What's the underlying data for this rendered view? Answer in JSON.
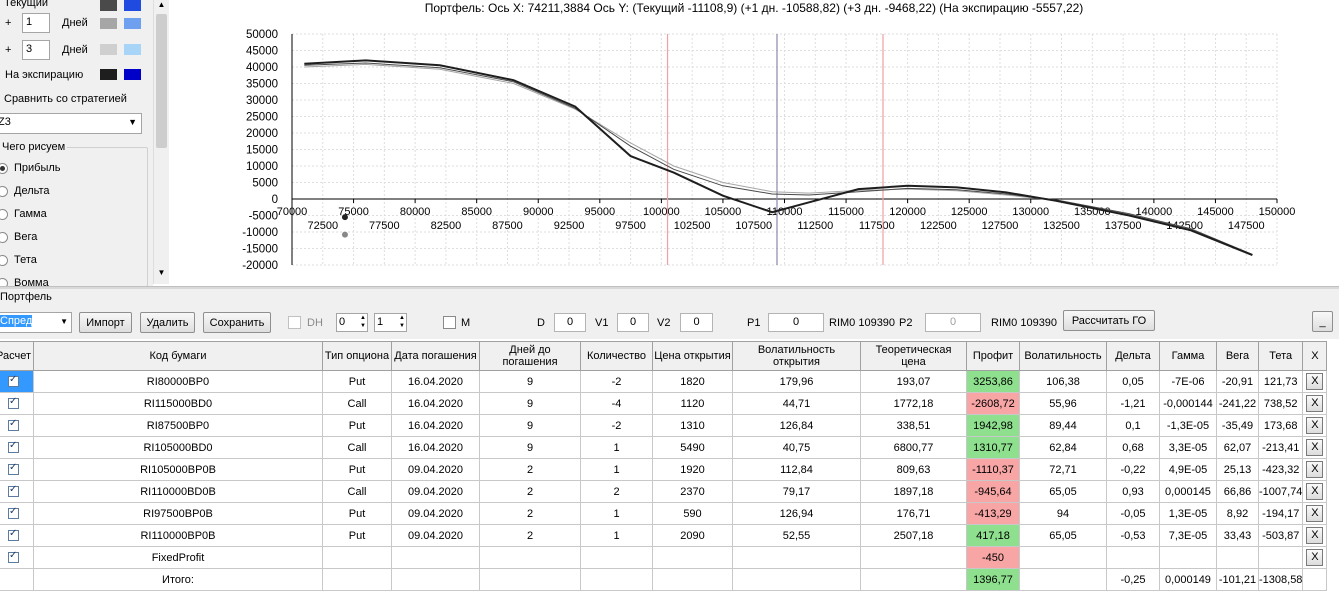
{
  "legend": {
    "current_label": "Текущий",
    "plus_sign": "+",
    "day1_value": "1",
    "day2_value": "3",
    "days_label": "Дней",
    "expiry_label": "На экспирацию",
    "compare_label": "Сравнить со стратегией",
    "compare_select": "Z3",
    "draw_group": "Чего рисуем",
    "draw_options": [
      "Прибыль",
      "Дельта",
      "Гамма",
      "Вега",
      "Тета",
      "Вомма"
    ],
    "colors": {
      "current_a": "#4a4a4a",
      "current_b": "#1f4be0",
      "p1_a": "#a6a6a6",
      "p1_b": "#6fa0f0",
      "p3_a": "#cfcfcf",
      "p3_b": "#a8d4f8",
      "exp_a": "#1e1e1e",
      "exp_b": "#0000c8"
    }
  },
  "chart_header": "Портфель: Ось X: 74211,3884 Ось Y:  (Текущий -11108,9)  (+1 дн. -10588,82)  (+3 дн. -9468,22)  (На экспирацию -5557,22)",
  "chart_data": {
    "type": "line",
    "xlim": [
      70000,
      150000
    ],
    "ylim": [
      -20000,
      50000
    ],
    "x_ticks_upper": [
      70000,
      75000,
      80000,
      85000,
      90000,
      95000,
      100000,
      105000,
      110000,
      115000,
      120000,
      125000,
      130000,
      135000,
      140000,
      145000,
      150000
    ],
    "x_ticks_lower": [
      72500,
      77500,
      82500,
      87500,
      92500,
      97500,
      102500,
      107500,
      112500,
      117500,
      122500,
      127500,
      132500,
      137500,
      142500,
      147500
    ],
    "y_ticks": [
      50000,
      45000,
      40000,
      35000,
      30000,
      25000,
      20000,
      15000,
      10000,
      5000,
      0,
      -5000,
      -10000,
      -15000,
      -20000
    ],
    "vertical_markers": [
      {
        "x": 100500,
        "color": "#f0a0a0"
      },
      {
        "x": 109390,
        "color": "#8a8aa8"
      },
      {
        "x": 118000,
        "color": "#f0a0a0"
      }
    ],
    "series": [
      {
        "name": "На экспирацию",
        "color": "#1e1e1e",
        "width": 2,
        "points": [
          [
            71000,
            41000
          ],
          [
            76000,
            42000
          ],
          [
            82000,
            40500
          ],
          [
            88000,
            36000
          ],
          [
            93000,
            28000
          ],
          [
            97500,
            13000
          ],
          [
            101000,
            8000
          ],
          [
            105000,
            1000
          ],
          [
            109000,
            -4000
          ],
          [
            112000,
            -1000
          ],
          [
            116000,
            3000
          ],
          [
            120000,
            4000
          ],
          [
            124000,
            3500
          ],
          [
            128000,
            2000
          ],
          [
            132000,
            -500
          ],
          [
            138000,
            -5000
          ],
          [
            143000,
            -9500
          ],
          [
            148000,
            -17000
          ]
        ]
      },
      {
        "name": "Текущий",
        "color": "#4a4a4a",
        "width": 1,
        "points": [
          [
            71000,
            40500
          ],
          [
            76000,
            41200
          ],
          [
            82000,
            39800
          ],
          [
            88000,
            35500
          ],
          [
            93000,
            27500
          ],
          [
            97500,
            16000
          ],
          [
            101000,
            9000
          ],
          [
            105000,
            4000
          ],
          [
            109000,
            1500
          ],
          [
            112000,
            1200
          ],
          [
            116000,
            2200
          ],
          [
            120000,
            3200
          ],
          [
            124000,
            2800
          ],
          [
            128000,
            1500
          ],
          [
            132000,
            -200
          ],
          [
            138000,
            -4500
          ],
          [
            143000,
            -9000
          ],
          [
            148000,
            -16800
          ]
        ]
      },
      {
        "name": "+1 дн.",
        "color": "#a6a6a6",
        "width": 1,
        "points": [
          [
            71000,
            40000
          ],
          [
            76000,
            40800
          ],
          [
            82000,
            39300
          ],
          [
            88000,
            35000
          ],
          [
            93000,
            27200
          ],
          [
            97500,
            17000
          ],
          [
            101000,
            10000
          ],
          [
            105000,
            5000
          ],
          [
            109000,
            2200
          ],
          [
            112000,
            1800
          ],
          [
            116000,
            2600
          ],
          [
            120000,
            3000
          ],
          [
            124000,
            2500
          ],
          [
            128000,
            1200
          ],
          [
            132000,
            -400
          ],
          [
            138000,
            -4800
          ],
          [
            143000,
            -9200
          ],
          [
            148000,
            -16900
          ]
        ]
      }
    ],
    "points_markers": [
      {
        "x": 74300,
        "y": -5500,
        "color": "#222"
      },
      {
        "x": 74300,
        "y": -10800,
        "color": "#888"
      }
    ]
  },
  "portfolio": {
    "group_label": "Портфель",
    "strategy_select": "Спред",
    "import_btn": "Импорт",
    "delete_btn": "Удалить",
    "save_btn": "Сохранить",
    "dh_label": "DH",
    "spin1": "0",
    "spin2": "1",
    "m_label": "M",
    "d_label": "D",
    "d_value": "0",
    "v1_label": "V1",
    "v1_value": "0",
    "v2_label": "V2",
    "v2_value": "0",
    "p1_label": "P1",
    "p1_value": "0",
    "rim_label1": "RIM0 109390",
    "p2_label": "P2",
    "p2_value": "0",
    "rim_label2": "RIM0 109390",
    "calc_btn": "Рассчитать ГО",
    "collapse_btn": "_"
  },
  "table": {
    "headers": [
      "Расчет",
      "Код бумаги",
      "Тип опциона",
      "Дата погашения",
      "Дней до погашения",
      "Количество",
      "Цена открытия",
      "Волатильность открытия",
      "Теоретическая цена",
      "Профит",
      "Волатильность",
      "Дельта",
      "Гамма",
      "Вега",
      "Тета",
      "X"
    ],
    "rows": [
      {
        "checked": true,
        "cells": [
          "RI80000BP0",
          "Put",
          "16.04.2020",
          "9",
          "-2",
          "1820",
          "179,96",
          "193,07",
          "3253,86",
          "106,38",
          "0,05",
          "-7E-06",
          "-20,91",
          "121,73"
        ],
        "profit": "pos"
      },
      {
        "checked": true,
        "cells": [
          "RI115000BD0",
          "Call",
          "16.04.2020",
          "9",
          "-4",
          "1120",
          "44,71",
          "1772,18",
          "-2608,72",
          "55,96",
          "-1,21",
          "-0,000144",
          "-241,22",
          "738,52"
        ],
        "profit": "neg"
      },
      {
        "checked": true,
        "cells": [
          "RI87500BP0",
          "Put",
          "16.04.2020",
          "9",
          "-2",
          "1310",
          "126,84",
          "338,51",
          "1942,98",
          "89,44",
          "0,1",
          "-1,3E-05",
          "-35,49",
          "173,68"
        ],
        "profit": "pos"
      },
      {
        "checked": true,
        "cells": [
          "RI105000BD0",
          "Call",
          "16.04.2020",
          "9",
          "1",
          "5490",
          "40,75",
          "6800,77",
          "1310,77",
          "62,84",
          "0,68",
          "3,3E-05",
          "62,07",
          "-213,41"
        ],
        "profit": "pos"
      },
      {
        "checked": true,
        "cells": [
          "RI105000BP0B",
          "Put",
          "09.04.2020",
          "2",
          "1",
          "1920",
          "112,84",
          "809,63",
          "-1110,37",
          "72,71",
          "-0,22",
          "4,9E-05",
          "25,13",
          "-423,32"
        ],
        "profit": "neg"
      },
      {
        "checked": true,
        "cells": [
          "RI110000BD0B",
          "Call",
          "09.04.2020",
          "2",
          "2",
          "2370",
          "79,17",
          "1897,18",
          "-945,64",
          "65,05",
          "0,93",
          "0,000145",
          "66,86",
          "-1007,74"
        ],
        "profit": "neg"
      },
      {
        "checked": true,
        "cells": [
          "RI97500BP0B",
          "Put",
          "09.04.2020",
          "2",
          "1",
          "590",
          "126,94",
          "176,71",
          "-413,29",
          "94",
          "-0,05",
          "1,3E-05",
          "8,92",
          "-194,17"
        ],
        "profit": "neg"
      },
      {
        "checked": true,
        "cells": [
          "RI110000BP0B",
          "Put",
          "09.04.2020",
          "2",
          "1",
          "2090",
          "52,55",
          "2507,18",
          "417,18",
          "65,05",
          "-0,53",
          "7,3E-05",
          "33,43",
          "-503,87"
        ],
        "profit": "pos"
      },
      {
        "checked": true,
        "cells": [
          "FixedProfit",
          "",
          "",
          "",
          "",
          "",
          "",
          "",
          "-450",
          "",
          "",
          "",
          "",
          ""
        ],
        "profit": "neg"
      }
    ],
    "total": {
      "cells": [
        "Итого:",
        "",
        "",
        "",
        "",
        "",
        "",
        "",
        "1396,77",
        "",
        "-0,25",
        "0,000149",
        "-101,21",
        "-1308,58"
      ]
    },
    "x_label": "X"
  }
}
